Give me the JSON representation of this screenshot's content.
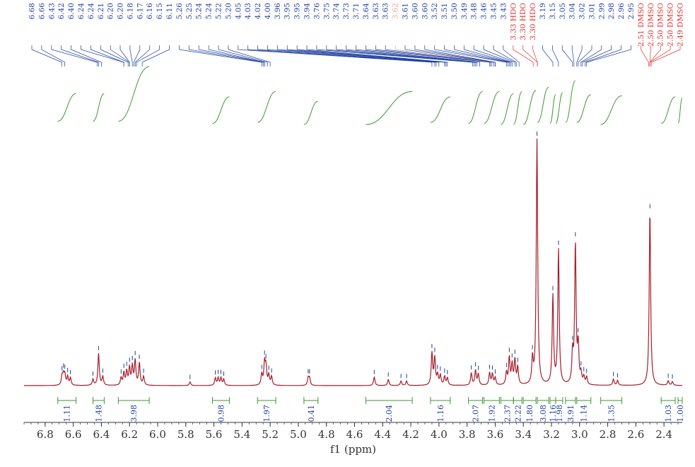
{
  "chart_data": {
    "type": "line",
    "xlabel": "f1 (ppm)",
    "xlim": [
      6.95,
      2.27
    ],
    "x_ticks": [
      "6.8",
      "6.6",
      "6.4",
      "6.2",
      "6.0",
      "5.8",
      "5.6",
      "5.4",
      "5.2",
      "5.0",
      "4.8",
      "4.6",
      "4.4",
      "4.2",
      "4.0",
      "3.8",
      "3.6",
      "3.4",
      "3.2",
      "3.0",
      "2.8",
      "2.6",
      "2.4"
    ],
    "peak_labels": [
      {
        "text": "6.68",
        "x": 6.68,
        "solvent": false
      },
      {
        "text": "6.66",
        "x": 6.66,
        "solvent": false
      },
      {
        "text": "6.43",
        "x": 6.43,
        "solvent": false
      },
      {
        "text": "6.42",
        "x": 6.42,
        "solvent": false
      },
      {
        "text": "6.40",
        "x": 6.4,
        "solvent": false
      },
      {
        "text": "6.24",
        "x": 6.24,
        "solvent": false
      },
      {
        "text": "6.24",
        "x": 6.24,
        "solvent": false
      },
      {
        "text": "6.21",
        "x": 6.21,
        "solvent": false
      },
      {
        "text": "6.20",
        "x": 6.2,
        "solvent": false
      },
      {
        "text": "6.20",
        "x": 6.2,
        "solvent": false
      },
      {
        "text": "6.18",
        "x": 6.18,
        "solvent": false
      },
      {
        "text": "6.17",
        "x": 6.17,
        "solvent": false
      },
      {
        "text": "6.16",
        "x": 6.16,
        "solvent": false
      },
      {
        "text": "6.15",
        "x": 6.15,
        "solvent": false
      },
      {
        "text": "6.11",
        "x": 6.11,
        "solvent": false
      },
      {
        "text": "5.26",
        "x": 5.26,
        "solvent": false
      },
      {
        "text": "5.25",
        "x": 5.25,
        "solvent": false
      },
      {
        "text": "5.24",
        "x": 5.24,
        "solvent": false
      },
      {
        "text": "5.24",
        "x": 5.24,
        "solvent": false
      },
      {
        "text": "5.22",
        "x": 5.22,
        "solvent": false
      },
      {
        "text": "5.20",
        "x": 5.2,
        "solvent": false
      },
      {
        "text": "4.05",
        "x": 4.05,
        "solvent": false
      },
      {
        "text": "4.03",
        "x": 4.03,
        "solvent": false
      },
      {
        "text": "4.02",
        "x": 4.02,
        "solvent": false
      },
      {
        "text": "4.00",
        "x": 4.0,
        "solvent": false
      },
      {
        "text": "3.96",
        "x": 3.96,
        "solvent": false
      },
      {
        "text": "3.95",
        "x": 3.95,
        "solvent": false
      },
      {
        "text": "3.95",
        "x": 3.95,
        "solvent": false
      },
      {
        "text": "3.94",
        "x": 3.94,
        "solvent": false
      },
      {
        "text": "3.76",
        "x": 3.76,
        "solvent": false
      },
      {
        "text": "3.75",
        "x": 3.75,
        "solvent": false
      },
      {
        "text": "3.74",
        "x": 3.74,
        "solvent": false
      },
      {
        "text": "3.73",
        "x": 3.73,
        "solvent": false
      },
      {
        "text": "3.71",
        "x": 3.71,
        "solvent": false
      },
      {
        "text": "3.64",
        "x": 3.64,
        "solvent": false
      },
      {
        "text": "3.63",
        "x": 3.63,
        "solvent": false
      },
      {
        "text": "3.63",
        "x": 3.63,
        "solvent": false
      },
      {
        "text": "3.62",
        "x": 3.62,
        "solvent": false,
        "faint": true
      },
      {
        "text": "3.61",
        "x": 3.61,
        "solvent": false
      },
      {
        "text": "3.60",
        "x": 3.6,
        "solvent": false
      },
      {
        "text": "3.60",
        "x": 3.6,
        "solvent": false
      },
      {
        "text": "3.52",
        "x": 3.52,
        "solvent": false
      },
      {
        "text": "3.51",
        "x": 3.51,
        "solvent": false
      },
      {
        "text": "3.50",
        "x": 3.5,
        "solvent": false
      },
      {
        "text": "3.49",
        "x": 3.49,
        "solvent": false
      },
      {
        "text": "3.48",
        "x": 3.48,
        "solvent": false
      },
      {
        "text": "3.46",
        "x": 3.46,
        "solvent": false
      },
      {
        "text": "3.45",
        "x": 3.45,
        "solvent": false
      },
      {
        "text": "3.43",
        "x": 3.43,
        "solvent": false
      },
      {
        "text": "3.33 HDO",
        "x": 3.33,
        "solvent": true
      },
      {
        "text": "3.30 HDO",
        "x": 3.3,
        "solvent": true
      },
      {
        "text": "3.30 HDO",
        "x": 3.3,
        "solvent": true
      },
      {
        "text": "3.19",
        "x": 3.19,
        "solvent": false
      },
      {
        "text": "3.15",
        "x": 3.15,
        "solvent": false
      },
      {
        "text": "3.05",
        "x": 3.05,
        "solvent": false
      },
      {
        "text": "3.04",
        "x": 3.04,
        "solvent": false
      },
      {
        "text": "3.02",
        "x": 3.02,
        "solvent": false
      },
      {
        "text": "3.01",
        "x": 3.01,
        "solvent": false
      },
      {
        "text": "2.99",
        "x": 2.99,
        "solvent": false
      },
      {
        "text": "2.98",
        "x": 2.98,
        "solvent": false
      },
      {
        "text": "2.96",
        "x": 2.96,
        "solvent": false
      },
      {
        "text": "2.95",
        "x": 2.95,
        "solvent": false
      },
      {
        "text": "2.51 DMSO",
        "x": 2.51,
        "solvent": true
      },
      {
        "text": "2.50 DMSO",
        "x": 2.5,
        "solvent": true
      },
      {
        "text": "2.50 DMSO",
        "x": 2.5,
        "solvent": true
      },
      {
        "text": "2.50 DMSO",
        "x": 2.5,
        "solvent": true
      },
      {
        "text": "2.49 DMSO",
        "x": 2.49,
        "solvent": true
      }
    ],
    "peaks": [
      {
        "x": 6.68,
        "h": 0.035
      },
      {
        "x": 6.67,
        "h": 0.04
      },
      {
        "x": 6.66,
        "h": 0.04
      },
      {
        "x": 6.64,
        "h": 0.035
      },
      {
        "x": 6.62,
        "h": 0.03
      },
      {
        "x": 6.46,
        "h": 0.025
      },
      {
        "x": 6.42,
        "h": 0.13
      },
      {
        "x": 6.39,
        "h": 0.035
      },
      {
        "x": 6.26,
        "h": 0.03
      },
      {
        "x": 6.24,
        "h": 0.05
      },
      {
        "x": 6.22,
        "h": 0.055
      },
      {
        "x": 6.2,
        "h": 0.07
      },
      {
        "x": 6.18,
        "h": 0.075
      },
      {
        "x": 6.16,
        "h": 0.1
      },
      {
        "x": 6.13,
        "h": 0.09
      },
      {
        "x": 6.1,
        "h": 0.035
      },
      {
        "x": 5.77,
        "h": 0.015
      },
      {
        "x": 5.59,
        "h": 0.03
      },
      {
        "x": 5.57,
        "h": 0.03
      },
      {
        "x": 5.55,
        "h": 0.03
      },
      {
        "x": 5.53,
        "h": 0.025
      },
      {
        "x": 5.26,
        "h": 0.045
      },
      {
        "x": 5.24,
        "h": 0.09
      },
      {
        "x": 5.23,
        "h": 0.07
      },
      {
        "x": 5.21,
        "h": 0.04
      },
      {
        "x": 5.19,
        "h": 0.035
      },
      {
        "x": 4.93,
        "h": 0.03
      },
      {
        "x": 4.92,
        "h": 0.03
      },
      {
        "x": 4.46,
        "h": 0.035
      },
      {
        "x": 4.36,
        "h": 0.025
      },
      {
        "x": 4.27,
        "h": 0.018
      },
      {
        "x": 4.23,
        "h": 0.018
      },
      {
        "x": 4.05,
        "h": 0.13
      },
      {
        "x": 4.03,
        "h": 0.11
      },
      {
        "x": 4.01,
        "h": 0.04
      },
      {
        "x": 3.99,
        "h": 0.04
      },
      {
        "x": 3.96,
        "h": 0.035
      },
      {
        "x": 3.94,
        "h": 0.03
      },
      {
        "x": 3.77,
        "h": 0.05
      },
      {
        "x": 3.74,
        "h": 0.06
      },
      {
        "x": 3.72,
        "h": 0.045
      },
      {
        "x": 3.64,
        "h": 0.05
      },
      {
        "x": 3.62,
        "h": 0.045
      },
      {
        "x": 3.6,
        "h": 0.03
      },
      {
        "x": 3.52,
        "h": 0.05
      },
      {
        "x": 3.5,
        "h": 0.11
      },
      {
        "x": 3.48,
        "h": 0.08
      },
      {
        "x": 3.46,
        "h": 0.1
      },
      {
        "x": 3.44,
        "h": 0.07
      },
      {
        "x": 3.335,
        "h": 0.1
      },
      {
        "x": 3.303,
        "h": 1.0
      },
      {
        "x": 3.19,
        "h": 0.36
      },
      {
        "x": 3.15,
        "h": 0.55
      },
      {
        "x": 3.05,
        "h": 0.12
      },
      {
        "x": 3.03,
        "h": 0.57
      },
      {
        "x": 3.01,
        "h": 0.15
      },
      {
        "x": 2.99,
        "h": 0.04
      },
      {
        "x": 2.97,
        "h": 0.03
      },
      {
        "x": 2.95,
        "h": 0.03
      },
      {
        "x": 2.76,
        "h": 0.025
      },
      {
        "x": 2.73,
        "h": 0.02
      },
      {
        "x": 2.5,
        "h": 0.71
      },
      {
        "x": 2.37,
        "h": 0.018
      },
      {
        "x": 2.34,
        "h": 0.015
      }
    ],
    "integrals": [
      {
        "from": 6.71,
        "to": 6.58,
        "value": "1.11",
        "curve_bottom": 0.47,
        "curve_top": 0.41
      },
      {
        "from": 6.46,
        "to": 6.38,
        "value": "1.48",
        "curve_bottom": 0.47,
        "curve_top": 0.41
      },
      {
        "from": 6.28,
        "to": 6.06,
        "value": "3.98",
        "curve_bottom": 0.47,
        "curve_top": 0.16
      },
      {
        "from": 5.61,
        "to": 5.49,
        "value": "0.98",
        "curve_bottom": 0.49,
        "curve_top": 0.44
      },
      {
        "from": 5.29,
        "to": 5.16,
        "value": "1.97",
        "curve_bottom": 0.48,
        "curve_top": 0.39
      },
      {
        "from": 4.96,
        "to": 4.86,
        "value": "0.41",
        "curve_bottom": 0.5,
        "curve_top": 0.48
      },
      {
        "from": 4.52,
        "to": 4.19,
        "value": "2.04",
        "curve_bottom": 0.5,
        "curve_top": 0.39
      },
      {
        "from": 4.06,
        "to": 3.92,
        "value": "1.16",
        "curve_bottom": 0.48,
        "curve_top": 0.44
      },
      {
        "from": 3.79,
        "to": 3.69,
        "value": "2.07",
        "curve_bottom": 0.49,
        "curve_top": 0.39
      },
      {
        "from": 3.68,
        "to": 3.57,
        "value": "1.92",
        "curve_bottom": 0.49,
        "curve_top": 0.39
      },
      {
        "from": 3.56,
        "to": 3.47,
        "value": "2.37",
        "curve_bottom": 0.5,
        "curve_top": 0.41
      },
      {
        "from": 3.47,
        "to": 3.41,
        "value": "2.22",
        "curve_bottom": 0.5,
        "curve_top": 0.39
      },
      {
        "from": 3.4,
        "to": 3.31,
        "value": "1.80",
        "curve_bottom": 0.5,
        "curve_top": 0.38
      },
      {
        "from": 3.3,
        "to": 3.22,
        "value": "3.08",
        "curve_bottom": 0.48,
        "curve_top": 0.35
      },
      {
        "from": 3.21,
        "to": 3.17,
        "value": "1.16",
        "curve_bottom": 0.49,
        "curve_top": 0.42
      },
      {
        "from": 3.17,
        "to": 3.12,
        "value": "1.98",
        "curve_bottom": 0.49,
        "curve_top": 0.4
      },
      {
        "from": 3.1,
        "to": 3.03,
        "value": "3.91",
        "curve_bottom": 0.48,
        "curve_top": 0.29
      },
      {
        "from": 3.02,
        "to": 2.92,
        "value": "1.14",
        "curve_bottom": 0.48,
        "curve_top": 0.42
      },
      {
        "from": 2.85,
        "to": 2.7,
        "value": "1.35",
        "curve_bottom": 0.5,
        "curve_top": 0.43
      },
      {
        "from": 2.42,
        "to": 2.32,
        "value": "1.03",
        "curve_bottom": 0.49,
        "curve_top": 0.44
      },
      {
        "from": 2.3,
        "to": 2.27,
        "value": "1.00",
        "curve_bottom": 0.49,
        "curve_top": 0.45
      }
    ],
    "colors": {
      "spectrum": "#a51d2d",
      "peak_label": "#1f3f9f",
      "solvent_label": "#e0312f",
      "faint_label": "#e8a98f",
      "integral_curve": "#3c9a2e",
      "integral_bar": "#3c9a2e",
      "integral_value": "#1f3f9f",
      "axis": "#333333"
    }
  }
}
